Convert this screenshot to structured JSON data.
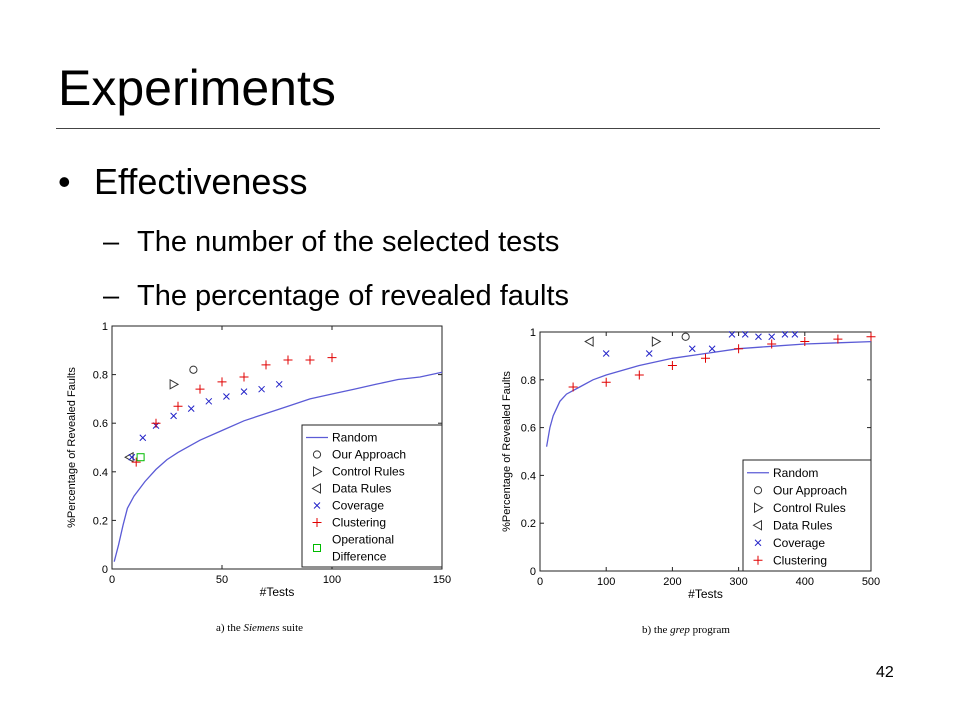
{
  "slide": {
    "title": "Experiments",
    "bullet_symbol": "•",
    "bullet": "Effectiveness",
    "dash_symbol": "–",
    "subbullets": [
      "The number of the selected tests",
      "The percentage of revealed faults"
    ],
    "page_number": "42"
  },
  "captions": {
    "a_prefix": "a) the ",
    "a_italic": "Siemens",
    "a_suffix": " suite",
    "b_prefix": "b) the ",
    "b_italic": "grep",
    "b_suffix": " program"
  },
  "colors": {
    "random": "#5b5bd6",
    "coverage": "#2323c8",
    "clustering": "#e00000",
    "operational": "#00bb00",
    "marker_black": "#333333"
  },
  "chart_data": [
    {
      "type": "scatter",
      "xlabel": "#Tests",
      "ylabel": "%Percentage of Revealed Faults",
      "xlim": [
        0,
        150
      ],
      "ylim": [
        0,
        1
      ],
      "xticks": [
        0,
        50,
        100,
        150
      ],
      "yticks": [
        0,
        0.2,
        0.4,
        0.6,
        0.8,
        1
      ],
      "ytick_labels": [
        "0",
        "0.2",
        "0.4",
        "0.6",
        "0.8",
        "1"
      ],
      "grid": false,
      "legend_position": "bottom-right",
      "series": [
        {
          "name": "Random",
          "marker": "line",
          "points": [
            [
              1,
              0.03
            ],
            [
              3,
              0.1
            ],
            [
              5,
              0.18
            ],
            [
              7,
              0.25
            ],
            [
              10,
              0.3
            ],
            [
              15,
              0.36
            ],
            [
              20,
              0.41
            ],
            [
              25,
              0.45
            ],
            [
              30,
              0.48
            ],
            [
              40,
              0.53
            ],
            [
              50,
              0.57
            ],
            [
              60,
              0.61
            ],
            [
              70,
              0.64
            ],
            [
              80,
              0.67
            ],
            [
              90,
              0.7
            ],
            [
              100,
              0.72
            ],
            [
              110,
              0.74
            ],
            [
              120,
              0.76
            ],
            [
              130,
              0.78
            ],
            [
              140,
              0.79
            ],
            [
              150,
              0.81
            ]
          ]
        },
        {
          "name": "Our Approach",
          "marker": "circle",
          "points": [
            [
              37,
              0.82
            ]
          ]
        },
        {
          "name": "Control Rules",
          "marker": "triangle-right",
          "points": [
            [
              28,
              0.76
            ]
          ]
        },
        {
          "name": "Data Rules",
          "marker": "triangle-left",
          "points": [
            [
              8,
              0.46
            ]
          ]
        },
        {
          "name": "Coverage",
          "marker": "x",
          "points": [
            [
              9,
              0.46
            ],
            [
              14,
              0.54
            ],
            [
              20,
              0.59
            ],
            [
              28,
              0.63
            ],
            [
              36,
              0.66
            ],
            [
              44,
              0.69
            ],
            [
              52,
              0.71
            ],
            [
              60,
              0.73
            ],
            [
              68,
              0.74
            ],
            [
              76,
              0.76
            ]
          ]
        },
        {
          "name": "Clustering",
          "marker": "plus",
          "points": [
            [
              11,
              0.44
            ],
            [
              20,
              0.6
            ],
            [
              30,
              0.67
            ],
            [
              40,
              0.74
            ],
            [
              50,
              0.77
            ],
            [
              60,
              0.79
            ],
            [
              70,
              0.84
            ],
            [
              80,
              0.86
            ],
            [
              90,
              0.86
            ],
            [
              100,
              0.87
            ]
          ]
        },
        {
          "name": "Operational Difference",
          "legend_lines": [
            "Operational",
            "Difference"
          ],
          "marker": "square",
          "points": [
            [
              13,
              0.46
            ]
          ]
        }
      ]
    },
    {
      "type": "scatter",
      "xlabel": "#Tests",
      "ylabel": "%Percentage of Revealed Faults",
      "xlim": [
        0,
        500
      ],
      "ylim": [
        0,
        1
      ],
      "xticks": [
        0,
        100,
        200,
        300,
        400,
        500
      ],
      "yticks": [
        0,
        0.2,
        0.4,
        0.6,
        0.8,
        1
      ],
      "ytick_labels": [
        "0",
        "0.2",
        "0.4",
        "0.6",
        "0.8",
        "1"
      ],
      "grid": false,
      "legend_position": "bottom-right",
      "series": [
        {
          "name": "Random",
          "marker": "line",
          "points": [
            [
              10,
              0.52
            ],
            [
              15,
              0.6
            ],
            [
              20,
              0.65
            ],
            [
              30,
              0.71
            ],
            [
              40,
              0.74
            ],
            [
              60,
              0.77
            ],
            [
              80,
              0.8
            ],
            [
              100,
              0.82
            ],
            [
              150,
              0.86
            ],
            [
              200,
              0.89
            ],
            [
              250,
              0.91
            ],
            [
              300,
              0.93
            ],
            [
              350,
              0.94
            ],
            [
              400,
              0.95
            ],
            [
              450,
              0.955
            ],
            [
              500,
              0.96
            ]
          ]
        },
        {
          "name": "Our Approach",
          "marker": "circle",
          "points": [
            [
              220,
              0.98
            ]
          ]
        },
        {
          "name": "Control Rules",
          "marker": "triangle-right",
          "points": [
            [
              175,
              0.96
            ]
          ]
        },
        {
          "name": "Data Rules",
          "marker": "triangle-left",
          "points": [
            [
              75,
              0.96
            ]
          ]
        },
        {
          "name": "Coverage",
          "marker": "x",
          "points": [
            [
              100,
              0.91
            ],
            [
              165,
              0.91
            ],
            [
              230,
              0.93
            ],
            [
              260,
              0.93
            ],
            [
              290,
              0.99
            ],
            [
              310,
              0.99
            ],
            [
              330,
              0.98
            ],
            [
              350,
              0.98
            ],
            [
              370,
              0.99
            ],
            [
              385,
              0.99
            ]
          ]
        },
        {
          "name": "Clustering",
          "marker": "plus",
          "points": [
            [
              50,
              0.77
            ],
            [
              100,
              0.79
            ],
            [
              150,
              0.82
            ],
            [
              200,
              0.86
            ],
            [
              250,
              0.89
            ],
            [
              300,
              0.93
            ],
            [
              350,
              0.95
            ],
            [
              400,
              0.96
            ],
            [
              450,
              0.97
            ],
            [
              500,
              0.98
            ]
          ]
        }
      ]
    }
  ]
}
